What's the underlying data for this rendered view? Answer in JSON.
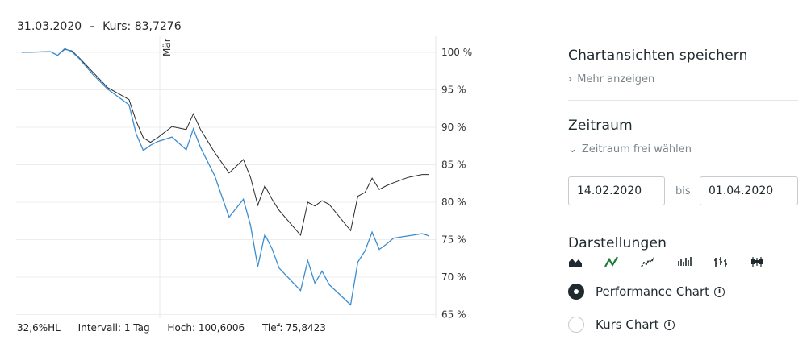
{
  "header": {
    "date": "31.03.2020",
    "separator": "-",
    "kurs_label": "Kurs:",
    "kurs_value": "83,7276"
  },
  "chart_data": {
    "type": "line",
    "month_marker": "Mär",
    "ytick_labels": [
      "100 %",
      "95 %",
      "90 %",
      "85 %",
      "80 %",
      "75 %",
      "70 %",
      "65 %"
    ],
    "ylim": [
      64.5,
      102
    ],
    "x_days": 47,
    "series": [
      {
        "color": "#2a2a2a",
        "x": [
          0,
          4,
          5,
          6,
          7,
          8,
          10,
          12,
          15,
          16,
          17,
          18,
          19,
          21,
          23,
          24,
          25,
          27,
          29,
          31,
          32,
          33,
          34,
          35,
          36,
          39,
          40,
          41,
          42,
          43,
          46,
          47
        ],
        "y": [
          100,
          100.1,
          99.6,
          100.4,
          100.2,
          99.3,
          97.3,
          95.3,
          93.7,
          90.8,
          88.6,
          88.0,
          88.6,
          90.1,
          89.7,
          91.8,
          89.7,
          86.6,
          83.9,
          85.7,
          83.3,
          79.6,
          82.2,
          80.4,
          78.9,
          75.6,
          80.0,
          79.5,
          80.2,
          79.7,
          76.2,
          80.8
        ],
        "x2": [
          48,
          49,
          50,
          51,
          52,
          54,
          56,
          57
        ],
        "y2": [
          81.3,
          83.2,
          81.7,
          82.2,
          82.6,
          83.3,
          83.7,
          83.7
        ]
      },
      {
        "color": "#3b8dd0",
        "x": [
          0,
          4,
          5,
          6,
          7,
          8,
          10,
          12,
          15,
          16,
          17,
          18,
          19,
          21,
          23,
          24,
          25,
          27,
          29,
          31,
          32,
          33,
          34,
          35,
          36,
          39,
          40,
          41,
          42,
          43,
          46,
          47
        ],
        "y": [
          100,
          100.1,
          99.6,
          100.5,
          100.1,
          99.2,
          97.0,
          95.1,
          93.0,
          89.1,
          86.9,
          87.6,
          88.1,
          88.7,
          87.0,
          89.8,
          87.3,
          83.5,
          78.0,
          80.4,
          76.9,
          71.4,
          75.7,
          73.8,
          71.2,
          68.2,
          72.2,
          69.2,
          70.8,
          69.0,
          66.3,
          72.0
        ],
        "x2": [
          48,
          49,
          50,
          51,
          52,
          54,
          56,
          57
        ],
        "y2": [
          73.5,
          76.0,
          73.7,
          74.4,
          75.2,
          75.5,
          75.8,
          75.5
        ]
      }
    ]
  },
  "stats": {
    "hl": "32,6%HL",
    "interval": "Intervall: 1 Tag",
    "hoch": "Hoch: 100,6006",
    "tief": "Tief: 75,8423"
  },
  "sidebar": {
    "save_title": "Chartansichten speichern",
    "more_link": "Mehr anzeigen",
    "zeitraum_title": "Zeitraum",
    "zeitraum_link": "Zeitraum frei wählen",
    "date_from": "14.02.2020",
    "bis": "bis",
    "date_to": "01.04.2020",
    "darstellungen_title": "Darstellungen",
    "chart_type_icons": [
      "area-chart-icon",
      "line-chart-icon",
      "dotted-line-chart-icon",
      "bar-chart-icon",
      "ohlc-chart-icon",
      "candlestick-chart-icon"
    ],
    "radio_performance": "Performance Chart",
    "radio_kurs": "Kurs Chart",
    "accent": "#1e7a3c"
  }
}
